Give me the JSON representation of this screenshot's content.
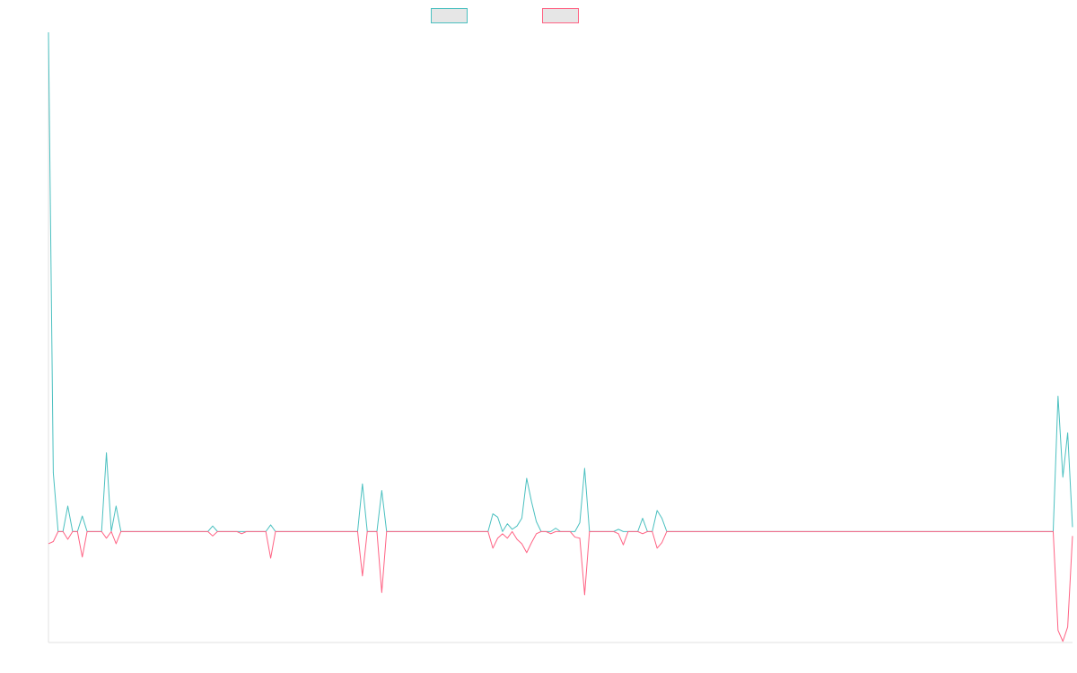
{
  "chart_data": {
    "type": "line",
    "categories": [
      null,
      null,
      null,
      null,
      null,
      null,
      null,
      null,
      null,
      null,
      null,
      null,
      null,
      null,
      null,
      null,
      null,
      null,
      null,
      null,
      null,
      null,
      null,
      null,
      null,
      null,
      null,
      null,
      null,
      null,
      null,
      null,
      null,
      null,
      null,
      null,
      null,
      null,
      null,
      null,
      null,
      null,
      null,
      null,
      null,
      null,
      null,
      null,
      null,
      null,
      null,
      null,
      null,
      null,
      null,
      null,
      null,
      null,
      null,
      null,
      null,
      null,
      null,
      null,
      null,
      null,
      null,
      null,
      null,
      null,
      null,
      null,
      null,
      null,
      null,
      null,
      null,
      null,
      null,
      null,
      null,
      null,
      null,
      null,
      null,
      null,
      null,
      null,
      null,
      null,
      null,
      null,
      null,
      null,
      null,
      null,
      null,
      null,
      null,
      null,
      null,
      null,
      null,
      null,
      null,
      null,
      null,
      null,
      null,
      null,
      null,
      null,
      null,
      null,
      null,
      null,
      null,
      null,
      null,
      null,
      null,
      null,
      null,
      null,
      null,
      null,
      null,
      null,
      null,
      null,
      null,
      null,
      null,
      null,
      null,
      null,
      null,
      null,
      null,
      null,
      null,
      null,
      null,
      null,
      null,
      null,
      null,
      null,
      null,
      null,
      null,
      null,
      null,
      null,
      null,
      null,
      null,
      null,
      null,
      null,
      null,
      null,
      null,
      null,
      null,
      null,
      null,
      null,
      null,
      null,
      null,
      null,
      null,
      null,
      null,
      null,
      null,
      null,
      null,
      null,
      null,
      null,
      null,
      null,
      null,
      null,
      null,
      null,
      null,
      null,
      null,
      null,
      null,
      null,
      null,
      null,
      null,
      null,
      null,
      null,
      null,
      null,
      null,
      null,
      null,
      null,
      null,
      null,
      null,
      null,
      null,
      null,
      null
    ],
    "series": [
      {
        "color": "#4bc0c0",
        "values": [
          45,
          5.3,
          0,
          0,
          2.3,
          0,
          0,
          1.4,
          0,
          0,
          0,
          0,
          7.1,
          0,
          2.3,
          0,
          0,
          0,
          0,
          0,
          0,
          0,
          0,
          0,
          0,
          0,
          0,
          0,
          0,
          0,
          0,
          0,
          0,
          0,
          0.5,
          0,
          0,
          0,
          0,
          0,
          0,
          0,
          0,
          0,
          0,
          0,
          0.6,
          0,
          0,
          0,
          0,
          0,
          0,
          0,
          0,
          0,
          0,
          0,
          0,
          0,
          0,
          0,
          0,
          0,
          0,
          4.3,
          0,
          0,
          0,
          3.7,
          0,
          0,
          0,
          0,
          0,
          0,
          0,
          0,
          0,
          0,
          0,
          0,
          0,
          0,
          0,
          0,
          0,
          0,
          0,
          0,
          0,
          0,
          1.6,
          1.3,
          0,
          0.7,
          0.2,
          0.5,
          1.2,
          4.8,
          2.7,
          0.9,
          0,
          0,
          0,
          0.3,
          0,
          0,
          0,
          0,
          0.8,
          5.7,
          0,
          0,
          0,
          0,
          0,
          0,
          0.2,
          0,
          0,
          0,
          0,
          1.2,
          0,
          0,
          1.9,
          1.2,
          0,
          0,
          0,
          0,
          0,
          0,
          0,
          0,
          0,
          0,
          0,
          0,
          0,
          0,
          0,
          0,
          0,
          0,
          0,
          0,
          0,
          0,
          0,
          0,
          0,
          0,
          0,
          0,
          0,
          0,
          0,
          0,
          0,
          0,
          0,
          0,
          0,
          0,
          0,
          0,
          0,
          0,
          0,
          0,
          0,
          0,
          0,
          0,
          0,
          0,
          0,
          0,
          0,
          0,
          0,
          0,
          0,
          0,
          0,
          0,
          0,
          0,
          0,
          0,
          0,
          0,
          0,
          0,
          0,
          0,
          0,
          0,
          0,
          0,
          0,
          0,
          0,
          0,
          0,
          0,
          0,
          12.2,
          4.9,
          8.9,
          0.4
        ]
      },
      {
        "color": "#ff6384",
        "values": [
          -1.1,
          -0.9,
          0,
          0,
          -0.7,
          0,
          0,
          -2.3,
          0,
          0,
          0,
          0,
          -0.6,
          0,
          -1.1,
          0,
          0,
          0,
          0,
          0,
          0,
          0,
          0,
          0,
          0,
          0,
          0,
          0,
          0,
          0,
          0,
          0,
          0,
          0,
          -0.4,
          0,
          0,
          0,
          0,
          0,
          -0.2,
          0,
          0,
          0,
          0,
          0,
          -2.4,
          0,
          0,
          0,
          0,
          0,
          0,
          0,
          0,
          0,
          0,
          0,
          0,
          0,
          0,
          0,
          0,
          0,
          0,
          -4.0,
          0,
          0,
          0,
          -5.5,
          0,
          0,
          0,
          0,
          0,
          0,
          0,
          0,
          0,
          0,
          0,
          0,
          0,
          0,
          0,
          0,
          0,
          0,
          0,
          0,
          0,
          0,
          -1.5,
          -0.6,
          -0.2,
          -0.6,
          0,
          -0.7,
          -1.1,
          -1.9,
          -1.0,
          -0.2,
          0,
          0,
          -0.2,
          0,
          0,
          0,
          0,
          -0.5,
          -0.6,
          -5.7,
          0,
          0,
          0,
          0,
          0,
          0,
          -0.2,
          -1.2,
          0,
          0,
          0,
          -0.2,
          0,
          0,
          -1.5,
          -1.0,
          0,
          0,
          0,
          0,
          0,
          0,
          0,
          0,
          0,
          0,
          0,
          0,
          0,
          0,
          0,
          0,
          0,
          0,
          0,
          0,
          0,
          0,
          0,
          0,
          0,
          0,
          0,
          0,
          0,
          0,
          0,
          0,
          0,
          0,
          0,
          0,
          0,
          0,
          0,
          0,
          0,
          0,
          0,
          0,
          0,
          0,
          0,
          0,
          0,
          0,
          0,
          0,
          0,
          0,
          0,
          0,
          0,
          0,
          0,
          0,
          0,
          0,
          0,
          0,
          0,
          0,
          0,
          0,
          0,
          0,
          0,
          0,
          0,
          0,
          0,
          0,
          0,
          0,
          0,
          0,
          0,
          -8.9,
          -9.9,
          -8.6,
          -0.4
        ]
      }
    ],
    "ylim": [
      -10,
      45
    ]
  }
}
